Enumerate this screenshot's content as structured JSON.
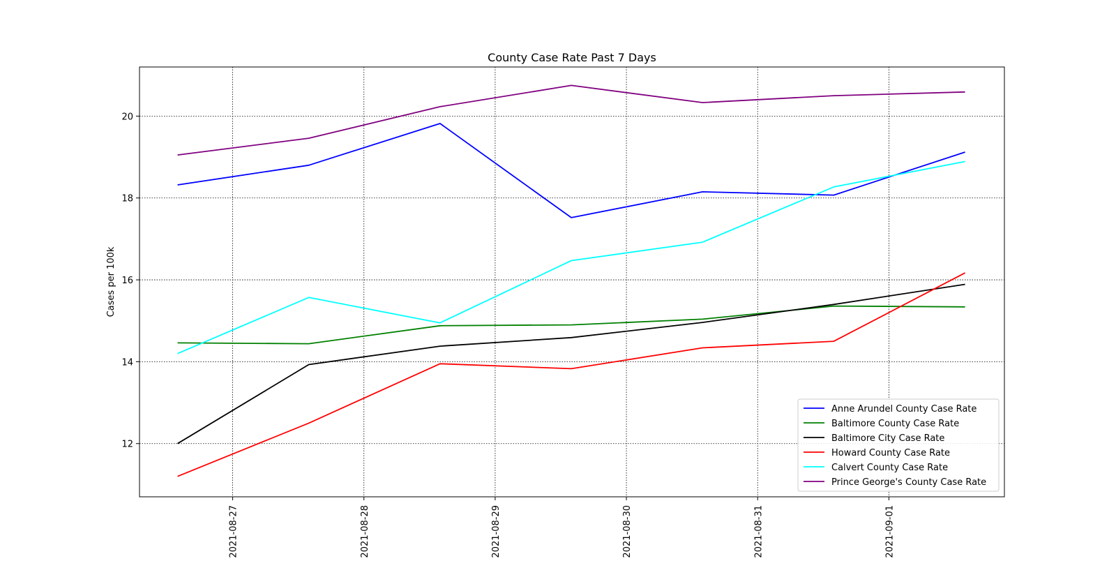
{
  "chart_data": {
    "type": "line",
    "title": "County Case Rate Past 7 Days",
    "xlabel": "",
    "ylabel": "Cases per 100k",
    "x_tick_labels": [
      "2021-08-27",
      "2021-08-28",
      "2021-08-29",
      "2021-08-30",
      "2021-08-31",
      "2021-09-01"
    ],
    "y_tick_labels": [
      "12",
      "14",
      "16",
      "18",
      "20"
    ],
    "y_ticks": [
      12,
      14,
      16,
      18,
      20
    ],
    "ylim": [
      10.7,
      21.2
    ],
    "x_range_days": [
      -0.71,
      5.88
    ],
    "grid": true,
    "grid_style": "dotted",
    "legend_location": "lower-right",
    "x_days": [
      -0.42,
      0.58,
      1.58,
      2.58,
      3.58,
      4.58,
      5.58
    ],
    "series": [
      {
        "name": "Anne Arundel County Case Rate",
        "color": "#0000ff",
        "values": [
          18.32,
          18.8,
          19.82,
          17.52,
          18.15,
          18.07,
          19.12
        ]
      },
      {
        "name": "Baltimore County Case Rate",
        "color": "#008000",
        "values": [
          14.46,
          14.44,
          14.88,
          14.9,
          15.04,
          15.36,
          15.34
        ]
      },
      {
        "name": "Baltimore City Case Rate",
        "color": "#000000",
        "values": [
          12.0,
          13.93,
          14.38,
          14.59,
          14.96,
          15.4,
          15.89
        ]
      },
      {
        "name": "Howard County Case Rate",
        "color": "#ff0000",
        "values": [
          11.2,
          12.5,
          13.95,
          13.83,
          14.34,
          14.5,
          16.17
        ]
      },
      {
        "name": "Calvert County Case Rate",
        "color": "#00ffff",
        "values": [
          14.2,
          15.57,
          14.95,
          16.47,
          16.92,
          18.27,
          18.89
        ]
      },
      {
        "name": "Prince George's County Case Rate",
        "color": "#800080",
        "values": [
          19.05,
          19.46,
          20.23,
          20.75,
          20.33,
          20.5,
          20.59
        ]
      }
    ]
  }
}
